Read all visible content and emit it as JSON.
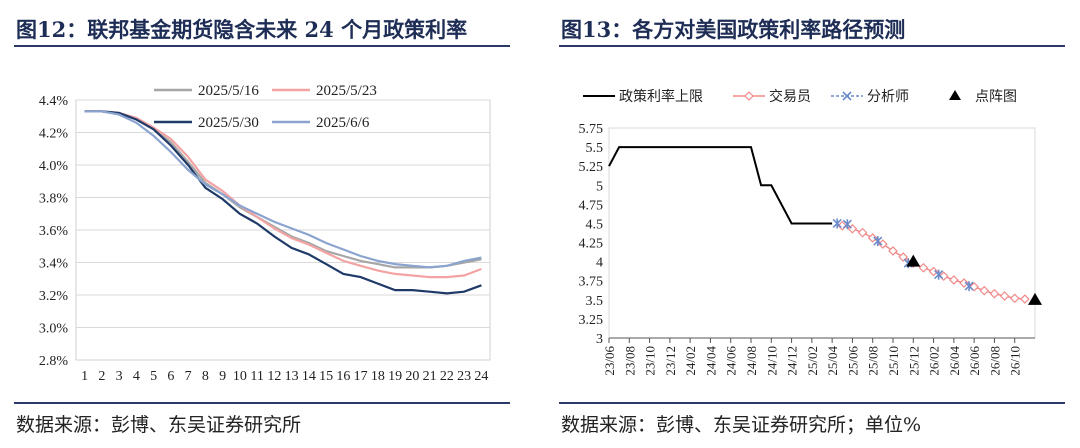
{
  "left": {
    "title": "图12：联邦基金期货隐含未来 24 个月政策利率",
    "source": "数据来源：彭博、东吴证券研究所",
    "chart_data": {
      "type": "line",
      "x": [
        1,
        2,
        3,
        4,
        5,
        6,
        7,
        8,
        9,
        10,
        11,
        12,
        13,
        14,
        15,
        16,
        17,
        18,
        19,
        20,
        21,
        22,
        23,
        24
      ],
      "x_ticks": [
        "1",
        "2",
        "3",
        "4",
        "5",
        "6",
        "7",
        "8",
        "9",
        "10",
        "11",
        "12",
        "13",
        "14",
        "15",
        "16",
        "17",
        "18",
        "19",
        "20",
        "21",
        "22",
        "23",
        "24"
      ],
      "ylim": [
        2.8,
        4.4
      ],
      "y_ticks": [
        "2.8%",
        "3.0%",
        "3.2%",
        "3.4%",
        "3.6%",
        "3.8%",
        "4.0%",
        "4.2%",
        "4.4%"
      ],
      "series": [
        {
          "name": "2025/5/16",
          "color": "#a6a6a6",
          "values": [
            4.33,
            4.33,
            4.32,
            4.28,
            4.22,
            4.14,
            4.02,
            3.89,
            3.82,
            3.74,
            3.68,
            3.62,
            3.56,
            3.52,
            3.47,
            3.44,
            3.41,
            3.39,
            3.37,
            3.37,
            3.37,
            3.38,
            3.4,
            3.42
          ]
        },
        {
          "name": "2025/5/23",
          "color": "#f4a3a3",
          "values": [
            4.33,
            4.33,
            4.32,
            4.29,
            4.23,
            4.16,
            4.05,
            3.91,
            3.84,
            3.75,
            3.68,
            3.61,
            3.55,
            3.51,
            3.46,
            3.41,
            3.38,
            3.35,
            3.33,
            3.32,
            3.31,
            3.31,
            3.32,
            3.36
          ]
        },
        {
          "name": "2025/5/30",
          "color": "#1f3a68",
          "values": [
            4.33,
            4.33,
            4.32,
            4.28,
            4.22,
            4.12,
            4.0,
            3.86,
            3.79,
            3.7,
            3.64,
            3.56,
            3.49,
            3.45,
            3.39,
            3.33,
            3.31,
            3.27,
            3.23,
            3.23,
            3.22,
            3.21,
            3.22,
            3.26
          ]
        },
        {
          "name": "2025/6/6",
          "color": "#8aa4cf",
          "values": [
            4.33,
            4.33,
            4.31,
            4.26,
            4.18,
            4.08,
            3.97,
            3.88,
            3.82,
            3.75,
            3.7,
            3.65,
            3.61,
            3.57,
            3.52,
            3.48,
            3.44,
            3.41,
            3.39,
            3.38,
            3.37,
            3.38,
            3.41,
            3.43
          ]
        }
      ]
    }
  },
  "right": {
    "title": "图13：各方对美国政策利率路径预测",
    "source": "数据来源：彭博、东吴证券研究所；单位%",
    "chart_data": {
      "type": "line",
      "ylim": [
        3,
        5.75
      ],
      "y_ticks": [
        "3",
        "3.25",
        "3.5",
        "3.75",
        "4",
        "4.25",
        "4.5",
        "4.75",
        "5",
        "5.25",
        "5.5",
        "5.75"
      ],
      "x_ticks": [
        "23/06",
        "23/08",
        "23/10",
        "23/12",
        "24/02",
        "24/04",
        "24/06",
        "24/08",
        "24/10",
        "24/12",
        "25/02",
        "25/04",
        "25/06",
        "25/08",
        "25/10",
        "25/12",
        "26/02",
        "26/04",
        "26/06",
        "26/08",
        "26/10"
      ],
      "series": [
        {
          "name": "政策利率上限",
          "color": "#000000",
          "marker": "none",
          "points": [
            [
              0,
              5.25
            ],
            [
              1,
              5.5
            ],
            [
              14,
              5.5
            ],
            [
              15,
              5.0
            ],
            [
              16,
              5.0
            ],
            [
              18,
              4.5
            ],
            [
              22,
              4.5
            ]
          ]
        },
        {
          "name": "交易员",
          "color": "#f08a8a",
          "marker": "diamond",
          "points": [
            [
              23,
              4.47
            ],
            [
              24,
              4.43
            ],
            [
              25,
              4.38
            ],
            [
              26,
              4.31
            ],
            [
              27,
              4.23
            ],
            [
              28,
              4.14
            ],
            [
              29,
              4.06
            ],
            [
              30,
              3.98
            ],
            [
              31,
              3.92
            ],
            [
              32,
              3.87
            ],
            [
              33,
              3.81
            ],
            [
              34,
              3.76
            ],
            [
              35,
              3.72
            ],
            [
              36,
              3.67
            ],
            [
              37,
              3.62
            ],
            [
              38,
              3.58
            ],
            [
              39,
              3.55
            ],
            [
              40,
              3.52
            ],
            [
              41,
              3.51
            ]
          ]
        },
        {
          "name": "分析师",
          "color": "#6b8ccb",
          "marker": "x",
          "points": [
            [
              22.5,
              4.5
            ],
            [
              23.5,
              4.49
            ],
            [
              26.5,
              4.27
            ],
            [
              29.5,
              3.98
            ],
            [
              32.5,
              3.83
            ],
            [
              35.5,
              3.68
            ]
          ]
        },
        {
          "name": "点阵图",
          "color": "#000000",
          "marker": "triangle",
          "points": [
            [
              30,
              4.0
            ],
            [
              42,
              3.5
            ]
          ]
        }
      ]
    }
  }
}
